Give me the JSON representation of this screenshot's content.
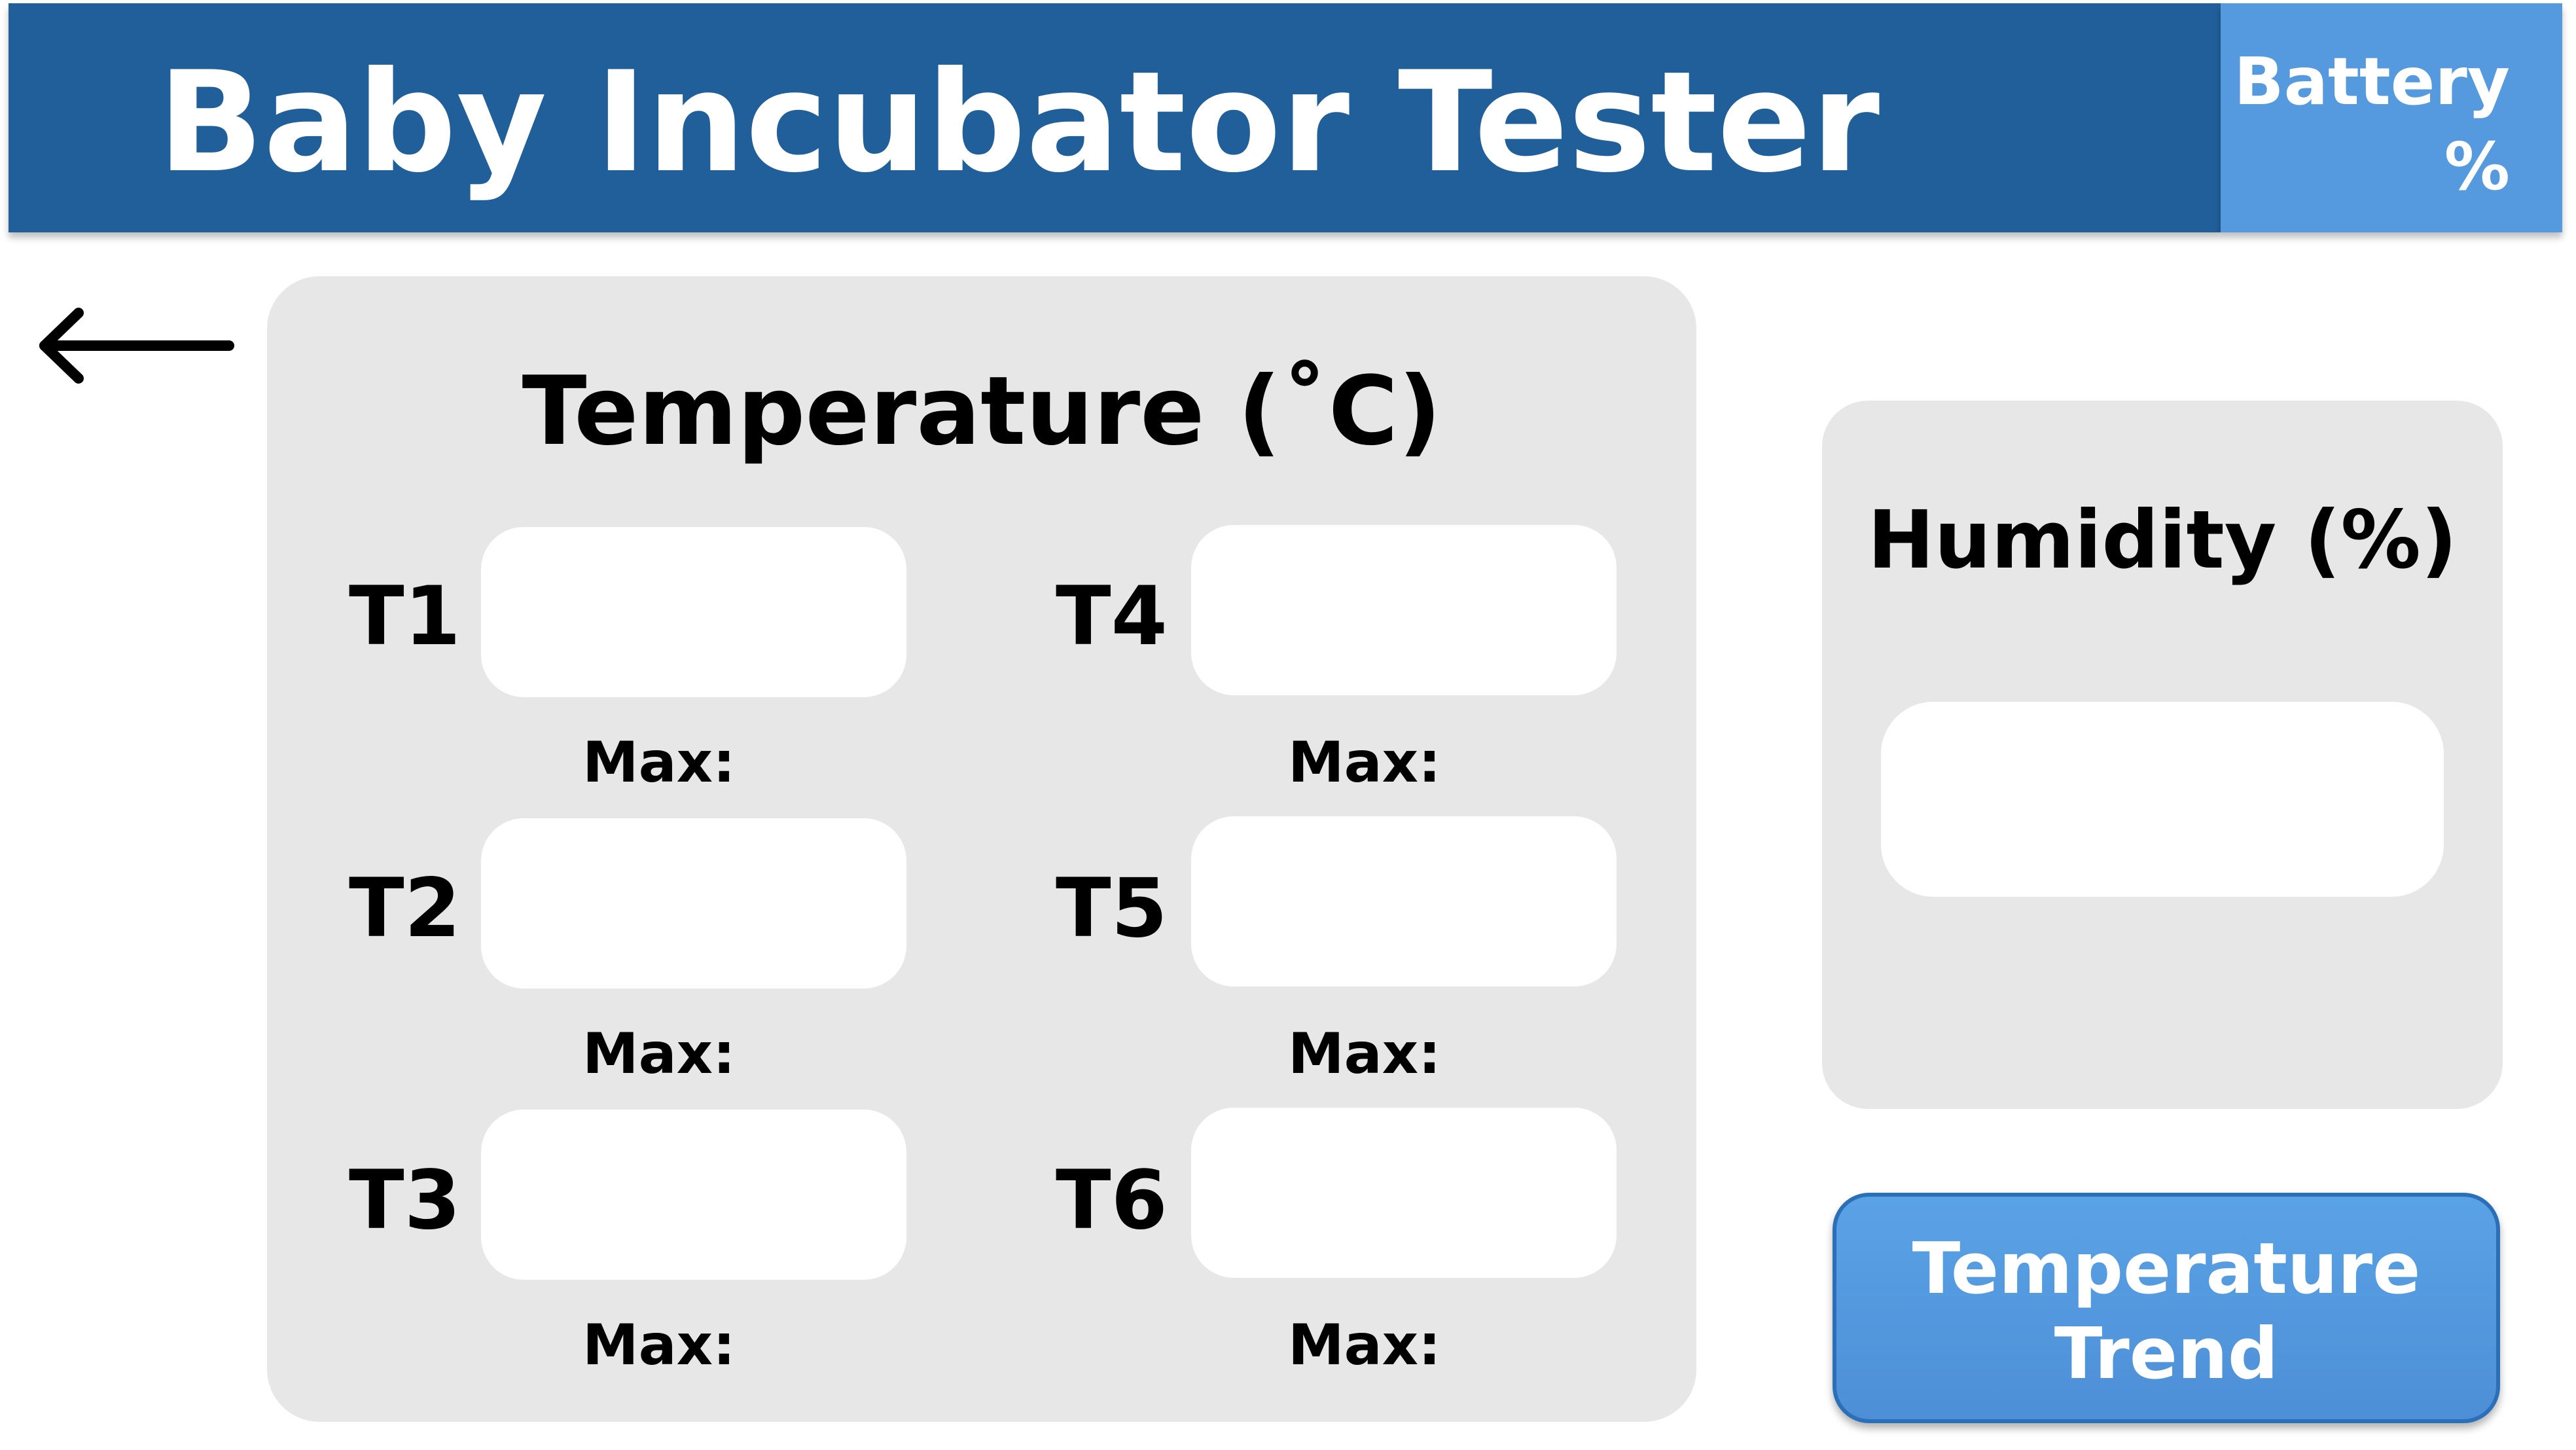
{
  "header": {
    "title": "Baby Incubator Tester",
    "battery_line1": "Battery",
    "battery_line2": "%",
    "background_color": "#215f9a",
    "battery_color": "#5599de"
  },
  "back_icon": "left-arrow-icon",
  "temperature": {
    "title": "Temperature (˚C)",
    "max_label": "Max:",
    "sensors": [
      {
        "label": "T1",
        "value": ""
      },
      {
        "label": "T2",
        "value": ""
      },
      {
        "label": "T3",
        "value": ""
      },
      {
        "label": "T4",
        "value": ""
      },
      {
        "label": "T5",
        "value": ""
      },
      {
        "label": "T6",
        "value": ""
      }
    ]
  },
  "humidity": {
    "title": "Humidity (%)",
    "value": ""
  },
  "trend_button": {
    "line1": "Temperature",
    "line2": "Trend",
    "color": "#5599de"
  }
}
